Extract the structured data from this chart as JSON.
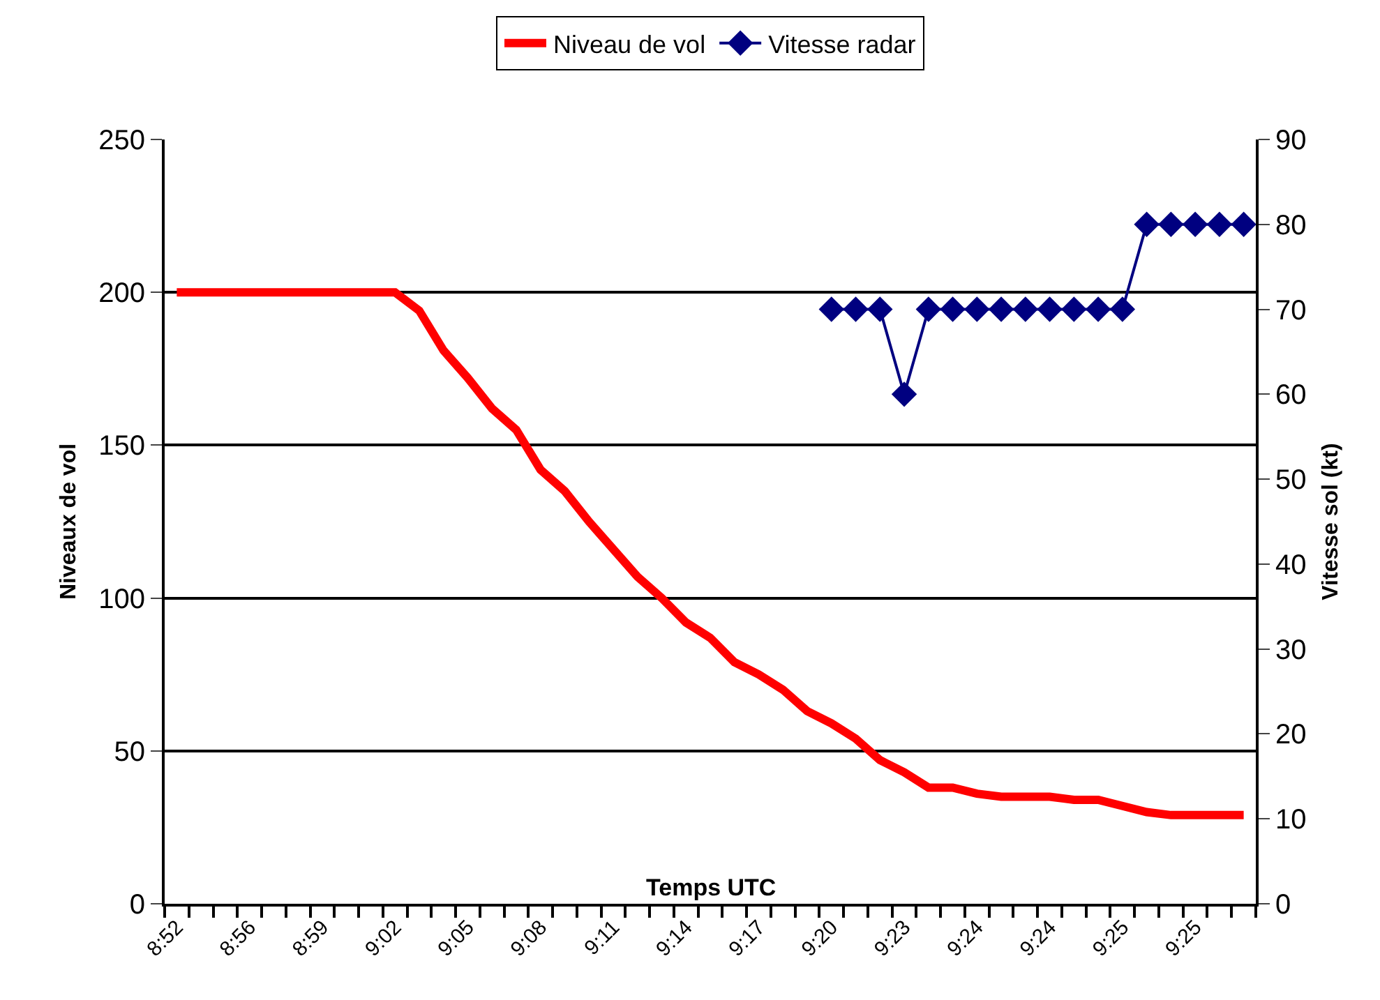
{
  "chart_data": {
    "type": "line",
    "xlabel": "Temps UTC",
    "ylabel": "Niveaux de vol",
    "y2label": "Vitesse sol (kt)",
    "categories": [
      "8:52",
      null,
      null,
      "8:56",
      null,
      null,
      "8:59",
      null,
      null,
      "9:02",
      null,
      null,
      "9:05",
      null,
      null,
      "9:08",
      null,
      null,
      "9:11",
      null,
      null,
      "9:14",
      null,
      null,
      "9:17",
      null,
      null,
      "9:20",
      null,
      null,
      "9:23",
      null,
      null,
      "9:24",
      null,
      null,
      "9:24",
      null,
      null,
      "9:25",
      null,
      null,
      "9:25",
      null,
      null
    ],
    "series": [
      {
        "name": "Niveau de vol",
        "color": "#ff0000",
        "marker": "none",
        "values": [
          200,
          200,
          200,
          200,
          200,
          200,
          200,
          200,
          200,
          200,
          194,
          181,
          172,
          162,
          155,
          142,
          135,
          125,
          116,
          107,
          100,
          92,
          87,
          79,
          75,
          70,
          63,
          59,
          54,
          47,
          43,
          38,
          38,
          36,
          35,
          35,
          35,
          34,
          34,
          32,
          30,
          29,
          29,
          29,
          29
        ]
      },
      {
        "name": "Vitesse radar",
        "color": "#000080",
        "marker": "diamond",
        "axis": "y2",
        "values": [
          null,
          null,
          null,
          null,
          null,
          null,
          null,
          null,
          null,
          null,
          null,
          null,
          null,
          null,
          null,
          null,
          null,
          null,
          null,
          null,
          null,
          null,
          null,
          null,
          null,
          null,
          null,
          70,
          70,
          70,
          60,
          70,
          70,
          70,
          70,
          70,
          70,
          70,
          70,
          70,
          80,
          80,
          80,
          80,
          80
        ]
      }
    ],
    "ylim": [
      0,
      250
    ],
    "yticks": [
      0,
      50,
      100,
      150,
      200,
      250
    ],
    "y2lim": [
      0,
      90
    ],
    "y2ticks": [
      0,
      10,
      20,
      30,
      40,
      50,
      60,
      70,
      80,
      90
    ],
    "grid": "y",
    "legend": "top"
  }
}
